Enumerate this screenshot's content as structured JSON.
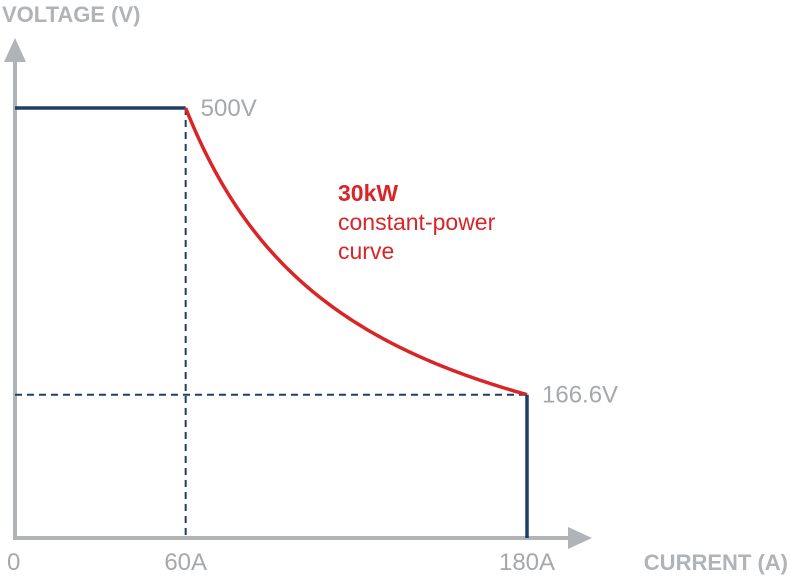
{
  "chart_data": {
    "type": "line",
    "title": "",
    "xlabel": "CURRENT (A)",
    "ylabel": "VOLTAGE (V)",
    "xlim": [
      0,
      180
    ],
    "ylim": [
      0,
      500
    ],
    "grid": false,
    "legend": "none",
    "x_ticks": [
      {
        "value": 0,
        "label": "0"
      },
      {
        "value": 60,
        "label": "60A"
      },
      {
        "value": 180,
        "label": "180A"
      }
    ],
    "series": [
      {
        "kind": "constant-voltage",
        "color": "#1d3e66",
        "points": [
          [
            0,
            500
          ],
          [
            60,
            500
          ]
        ]
      },
      {
        "kind": "constant-power",
        "color": "#d92528",
        "power_kw": 30,
        "points": [
          [
            60,
            500
          ],
          [
            70,
            428.6
          ],
          [
            80,
            375
          ],
          [
            90,
            333.3
          ],
          [
            100,
            300
          ],
          [
            110,
            272.7
          ],
          [
            120,
            250
          ],
          [
            130,
            230.8
          ],
          [
            140,
            214.3
          ],
          [
            150,
            200
          ],
          [
            160,
            187.5
          ],
          [
            170,
            176.5
          ],
          [
            180,
            166.6
          ]
        ]
      },
      {
        "kind": "constant-current",
        "color": "#1d3e66",
        "points": [
          [
            180,
            166.6
          ],
          [
            180,
            0
          ]
        ]
      }
    ],
    "guides": [
      {
        "from": [
          60,
          500
        ],
        "to": [
          60,
          0
        ],
        "style": "dashed"
      },
      {
        "from": [
          0,
          166.6
        ],
        "to": [
          180,
          166.6
        ],
        "style": "dashed"
      }
    ],
    "point_labels": [
      {
        "x": 60,
        "y": 500,
        "label": "500V"
      },
      {
        "x": 180,
        "y": 166.6,
        "label": "166.6V"
      }
    ],
    "annotation": {
      "title": "30kW",
      "lines": [
        "constant-power",
        "curve"
      ],
      "color": "#d92528"
    },
    "colors": {
      "axis": "#b0b3b7",
      "label": "#a5a8ac",
      "dark": "#1d3e66",
      "accent": "#d92528"
    }
  }
}
